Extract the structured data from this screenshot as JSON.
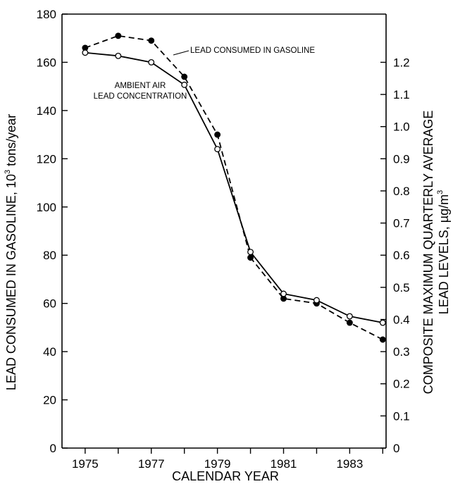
{
  "chart_data": {
    "type": "line",
    "xlabel": "CALENDAR YEAR",
    "ylabel_left_main": "LEAD CONSUMED IN GASOLINE, 10",
    "ylabel_left_sup": "3",
    "ylabel_left_tail": " tons/year",
    "ylabel_right_line1": "COMPOSITE MAXIMUM QUARTERLY AVERAGE",
    "ylabel_right_line2_main": "LEAD LEVELS, µg/m",
    "ylabel_right_line2_sup": "3",
    "xlim": [
      1974.3,
      1984.1
    ],
    "ylim_left": [
      0,
      180
    ],
    "ylim_right": [
      0,
      1.35
    ],
    "x_ticks": [
      1975,
      1976,
      1977,
      1978,
      1979,
      1980,
      1981,
      1982,
      1983,
      1984
    ],
    "x_tick_labels": [
      "1975",
      "",
      "1977",
      "",
      "1979",
      "",
      "1981",
      "",
      "1983",
      ""
    ],
    "y_left_ticks": [
      0,
      20,
      40,
      60,
      80,
      100,
      120,
      140,
      160,
      180
    ],
    "y_left_tick_labels": [
      "0",
      "20",
      "40",
      "60",
      "80",
      "100",
      "120",
      "140",
      "160",
      "180"
    ],
    "y_right_ticks": [
      0,
      0.1,
      0.2,
      0.3,
      0.4,
      0.5,
      0.6,
      0.7,
      0.8,
      0.9,
      1.0,
      1.1,
      1.2
    ],
    "y_right_tick_labels": [
      "0",
      "0.1",
      "0.2",
      "0.3",
      "0.4",
      "0.5",
      "0.6",
      "0.7",
      "0.8",
      "0.9",
      "1.0",
      "1.1",
      "1.2"
    ],
    "grid": false,
    "series": [
      {
        "name": "LEAD CONSUMED IN GASOLINE",
        "axis": "left",
        "style": "dashed",
        "marker": "filled-circle",
        "x": [
          1975,
          1976,
          1977,
          1978,
          1979,
          1980,
          1981,
          1982,
          1983,
          1984
        ],
        "values": [
          166,
          171,
          169,
          154,
          130,
          79,
          62,
          60,
          52,
          45
        ]
      },
      {
        "name_line1": "AMBIENT AIR",
        "name_line2": "LEAD CONCENTRATION",
        "axis": "right",
        "style": "solid",
        "marker": "open-circle",
        "x": [
          1975,
          1976,
          1977,
          1978,
          1979,
          1980,
          1981,
          1982,
          1983,
          1984
        ],
        "values": [
          1.23,
          1.22,
          1.2,
          1.13,
          0.93,
          0.61,
          0.48,
          0.46,
          0.41,
          0.39
        ]
      }
    ]
  }
}
